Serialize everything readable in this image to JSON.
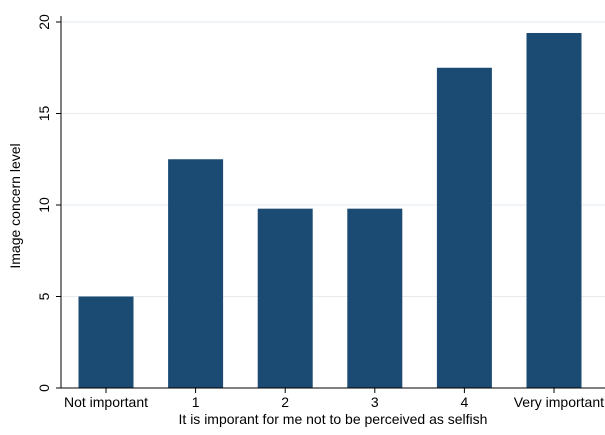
{
  "chart_data": {
    "type": "bar",
    "title": "",
    "xlabel": "It is imporant for me not to be perceived as selfish",
    "ylabel": "Image concern level",
    "categories": [
      "Not important",
      "1",
      "2",
      "3",
      "4",
      "Very important"
    ],
    "values": [
      5.0,
      12.5,
      9.8,
      9.8,
      17.5,
      19.4
    ],
    "ylim": [
      0,
      20
    ],
    "yticks": [
      0,
      5,
      10,
      15,
      20
    ],
    "grid": true,
    "bar_color": "#1b4a72",
    "grid_color": "#e6ebef"
  }
}
